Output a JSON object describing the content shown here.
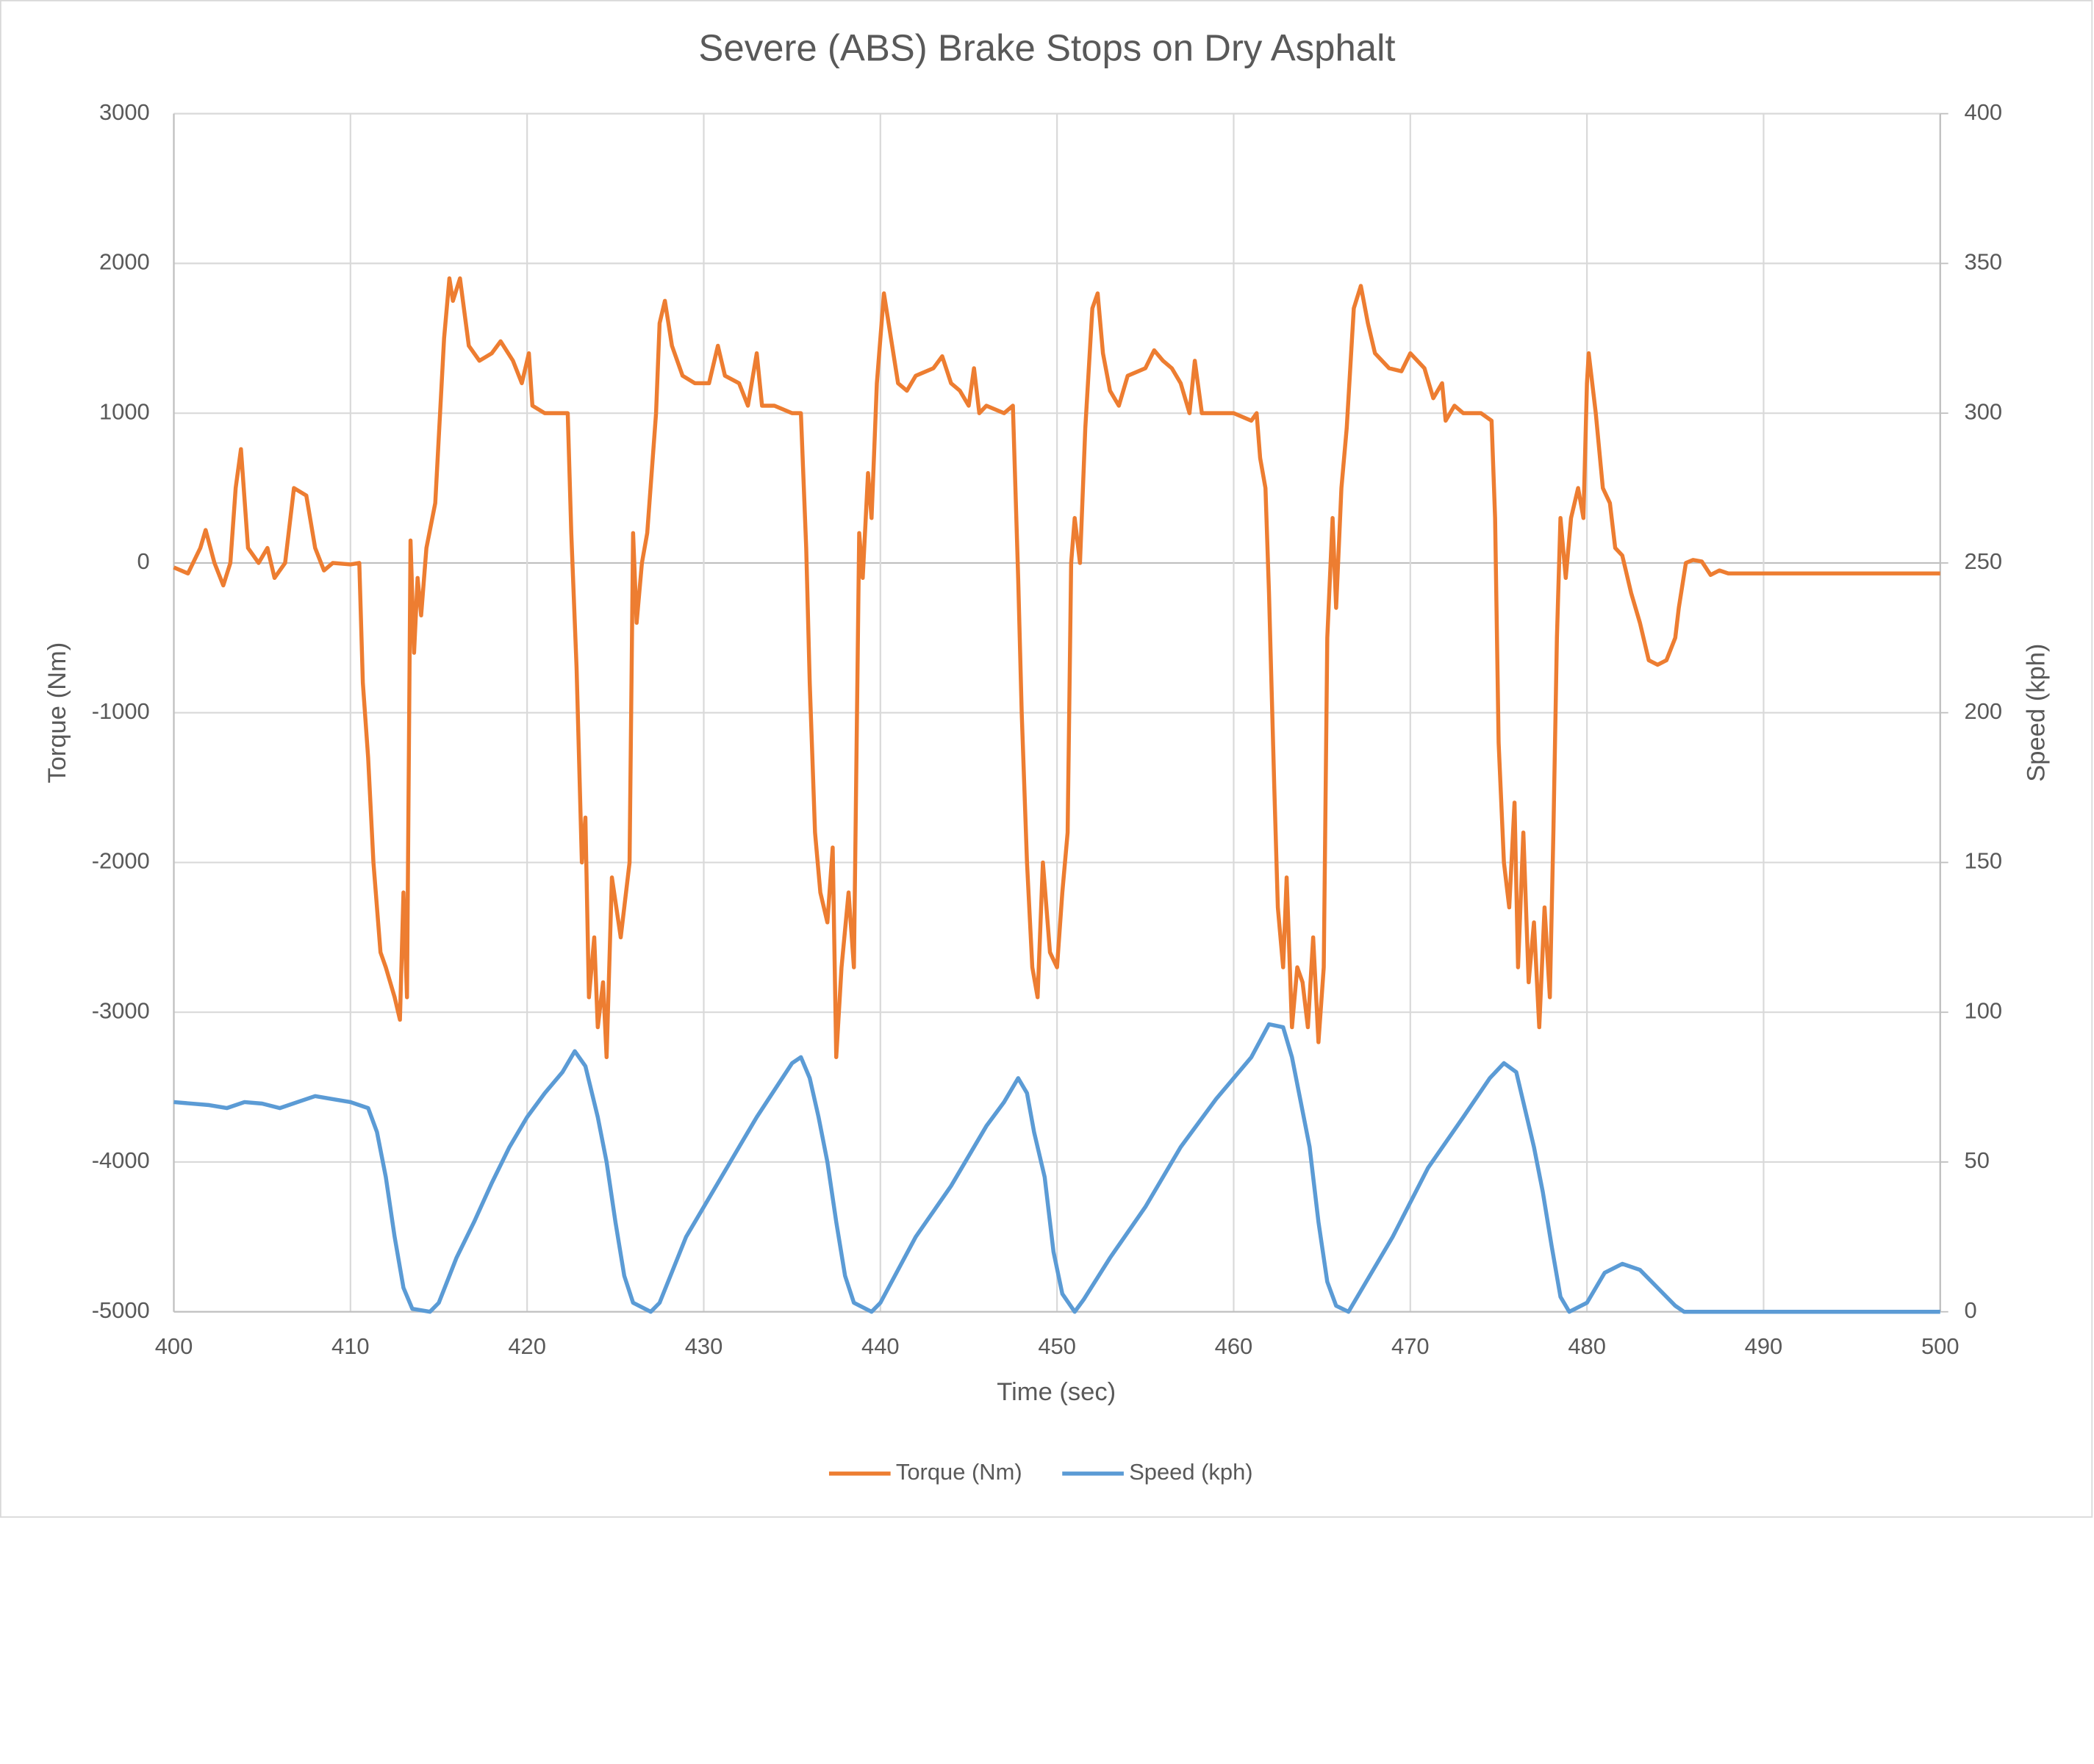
{
  "chart_data": {
    "type": "line",
    "title": "Severe (ABS) Brake Stops on Dry Asphalt",
    "x_label": "Time (sec)",
    "y_label": "Torque (Nm)",
    "y2_label": "Speed (kph)",
    "xlim": [
      400,
      500
    ],
    "xticks": [
      400,
      410,
      420,
      430,
      440,
      450,
      460,
      470,
      480,
      490,
      500
    ],
    "ylim": [
      -5000,
      3000
    ],
    "yticks": [
      -5000,
      -4000,
      -3000,
      -2000,
      -1000,
      0,
      1000,
      2000,
      3000
    ],
    "y2lim": [
      0,
      400
    ],
    "y2ticks": [
      0,
      50,
      100,
      150,
      200,
      250,
      300,
      350,
      400
    ],
    "grid": true,
    "legend": "bottom",
    "series": [
      {
        "name": "Torque (Nm)",
        "color": "#ED7D31",
        "x": [
          400,
          400.8,
          401.5,
          401.8,
          402.3,
          402.8,
          403.2,
          403.5,
          403.8,
          404.2,
          404.8,
          405.3,
          405.7,
          406.3,
          406.8,
          407.5,
          408,
          408.5,
          409,
          410,
          410.5,
          410.7,
          411,
          411.3,
          411.7,
          412,
          412.5,
          412.8,
          413,
          413.2,
          413.4,
          413.6,
          413.8,
          414,
          414.3,
          414.8,
          415.3,
          415.6,
          415.8,
          416.2,
          416.7,
          417.3,
          418,
          418.5,
          419.2,
          419.7,
          420.1,
          420.3,
          421,
          422,
          422.3,
          422.5,
          422.8,
          423.1,
          423.3,
          423.5,
          423.8,
          424,
          424.3,
          424.5,
          424.8,
          425.3,
          425.8,
          426,
          426.2,
          426.5,
          426.8,
          427.3,
          427.5,
          427.8,
          428.2,
          428.8,
          429.5,
          430.3,
          430.8,
          431.2,
          432,
          432.5,
          433,
          433.3,
          434,
          435,
          435.5,
          435.8,
          436,
          436.3,
          436.6,
          437,
          437.3,
          437.5,
          437.8,
          438.2,
          438.5,
          438.8,
          439,
          439.3,
          439.5,
          439.8,
          440.2,
          440.6,
          441,
          441.5,
          442,
          443,
          443.5,
          444,
          444.5,
          445,
          445.3,
          445.6,
          446,
          447,
          447.5,
          447.8,
          448,
          448.3,
          448.6,
          448.9,
          449.2,
          449.6,
          450,
          450.3,
          450.6,
          450.8,
          451,
          451.3,
          451.6,
          452,
          452.3,
          452.6,
          453,
          453.5,
          454,
          455,
          455.5,
          456,
          456.5,
          457,
          457.5,
          457.8,
          458.2,
          459,
          460,
          461,
          461.3,
          461.5,
          461.8,
          462,
          462.3,
          462.5,
          462.8,
          463,
          463.3,
          463.6,
          463.9,
          464.2,
          464.5,
          464.8,
          465.1,
          465.3,
          465.6,
          465.8,
          466.1,
          466.4,
          466.8,
          467.2,
          467.6,
          468,
          468.8,
          469.5,
          470,
          470.8,
          471.3,
          471.8,
          472,
          472.5,
          473,
          474,
          474.6,
          474.8,
          475,
          475.3,
          475.6,
          475.9,
          476.1,
          476.4,
          476.7,
          477,
          477.3,
          477.6,
          477.9,
          478.1,
          478.3,
          478.5,
          478.8,
          479.1,
          479.5,
          479.8,
          480,
          480.1,
          480.5,
          480.9,
          481.3,
          481.6,
          482,
          482.5,
          483,
          483.5,
          484,
          484.5,
          485,
          485.2,
          485.6,
          486,
          486.5,
          487,
          487.5,
          488,
          490,
          500
        ],
        "values": [
          -30,
          -70,
          100,
          220,
          0,
          -150,
          0,
          500,
          760,
          100,
          0,
          100,
          -100,
          0,
          500,
          450,
          100,
          -50,
          0,
          -10,
          0,
          -800,
          -1300,
          -2000,
          -2600,
          -2700,
          -2900,
          -3050,
          -2200,
          -2900,
          150,
          -600,
          -100,
          -350,
          100,
          400,
          1500,
          1900,
          1750,
          1900,
          1450,
          1350,
          1400,
          1480,
          1350,
          1200,
          1400,
          1050,
          1000,
          1000,
          1000,
          200,
          -700,
          -2000,
          -1700,
          -2900,
          -2500,
          -3100,
          -2800,
          -3300,
          -2100,
          -2500,
          -2000,
          200,
          -400,
          0,
          200,
          1000,
          1600,
          1750,
          1450,
          1250,
          1200,
          1200,
          1450,
          1250,
          1200,
          1050,
          1400,
          1050,
          1050,
          1000,
          1000,
          100,
          -800,
          -1800,
          -2200,
          -2400,
          -1900,
          -3300,
          -2700,
          -2200,
          -2700,
          200,
          -100,
          600,
          300,
          1200,
          1800,
          1500,
          1200,
          1150,
          1250,
          1300,
          1380,
          1200,
          1150,
          1050,
          1300,
          1000,
          1050,
          1000,
          1050,
          -100,
          -1000,
          -2000,
          -2700,
          -2900,
          -2000,
          -2600,
          -2700,
          -2200,
          -1800,
          0,
          300,
          0,
          900,
          1700,
          1800,
          1400,
          1150,
          1050,
          1250,
          1300,
          1420,
          1350,
          1300,
          1200,
          1000,
          1350,
          1000,
          1000,
          1000,
          950,
          1000,
          700,
          500,
          -200,
          -1500,
          -2300,
          -2700,
          -2100,
          -3100,
          -2700,
          -2800,
          -3100,
          -2500,
          -3200,
          -2700,
          -500,
          300,
          -300,
          500,
          900,
          1700,
          1850,
          1600,
          1400,
          1300,
          1280,
          1400,
          1300,
          1100,
          1200,
          950,
          1050,
          1000,
          1000,
          950,
          300,
          -1200,
          -2000,
          -2300,
          -1600,
          -2700,
          -1800,
          -2800,
          -2400,
          -3100,
          -2300,
          -2900,
          -1800,
          -500,
          300,
          -100,
          300,
          500,
          300,
          1200,
          1400,
          1000,
          500,
          400,
          100,
          50,
          -200,
          -400,
          -650,
          -680,
          -650,
          -500,
          -300,
          0,
          20,
          10,
          -80,
          -50,
          -70,
          -70,
          -70
        ]
      },
      {
        "name": "Speed (kph)",
        "color": "#5B9BD5",
        "axis": "y2",
        "x": [
          400,
          402,
          403,
          404,
          405,
          406,
          407,
          408,
          409,
          410,
          411,
          411.5,
          412,
          412.5,
          413,
          413.5,
          414.5,
          415,
          416,
          417,
          418,
          419,
          420,
          421,
          422,
          422.7,
          423.3,
          424,
          424.5,
          425,
          425.5,
          426,
          427,
          427.5,
          429,
          431,
          433,
          435,
          435.5,
          436,
          436.5,
          437,
          437.5,
          438,
          438.5,
          439.5,
          440,
          442,
          444,
          446,
          447,
          447.8,
          448.3,
          448.7,
          449.3,
          449.8,
          450.3,
          451,
          451.5,
          453,
          455,
          457,
          459,
          461,
          462,
          462.8,
          463.3,
          463.8,
          464.3,
          464.8,
          465.3,
          465.8,
          466.5,
          467,
          469,
          471,
          473,
          474.5,
          475.3,
          476,
          476.6,
          477,
          477.5,
          478,
          478.5,
          479,
          480,
          481,
          482,
          483,
          484,
          485,
          485.5,
          490,
          500
        ],
        "values": [
          70,
          69,
          68,
          70,
          69.5,
          68,
          70,
          72,
          71,
          70,
          68,
          60,
          45,
          25,
          8,
          1,
          0,
          3,
          18,
          30,
          43,
          55,
          65,
          73,
          80,
          87,
          82,
          65,
          50,
          30,
          12,
          3,
          0,
          3,
          25,
          45,
          65,
          83,
          85,
          78,
          65,
          50,
          30,
          12,
          3,
          0,
          3,
          25,
          42,
          62,
          70,
          78,
          73,
          60,
          45,
          20,
          6,
          0,
          4,
          18,
          35,
          55,
          71,
          85,
          96,
          95,
          85,
          70,
          55,
          30,
          10,
          2,
          0,
          5,
          25,
          48,
          65,
          78,
          83,
          80,
          65,
          55,
          40,
          22,
          5,
          0,
          3,
          13,
          16,
          14,
          8,
          2,
          0,
          0,
          0
        ]
      }
    ]
  }
}
